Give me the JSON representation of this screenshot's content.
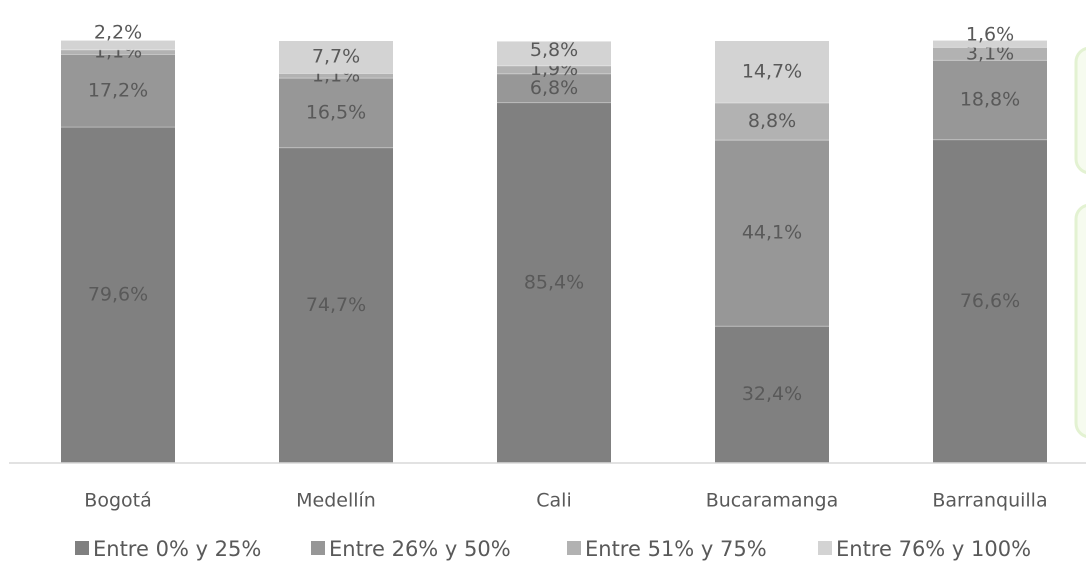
{
  "chart_data": {
    "type": "stacked-bar",
    "categories": [
      "Bogotá",
      "Medellín",
      "Cali",
      "Bucaramanga",
      "Barranquilla"
    ],
    "series": [
      {
        "name": "Entre 0% y 25%",
        "color": "#808080",
        "values": [
          79.6,
          74.7,
          85.4,
          32.4,
          76.6
        ],
        "value_labels": [
          "79,6%",
          "74,7%",
          "85,4%",
          "32,4%",
          "76,6%"
        ]
      },
      {
        "name": "Entre 26% y 50%",
        "color": "#979797",
        "values": [
          17.2,
          16.5,
          6.8,
          44.1,
          18.8
        ],
        "value_labels": [
          "17,2%",
          "16,5%",
          "6,8%",
          "44,1%",
          "18,8%"
        ]
      },
      {
        "name": "Entre 51% y 75%",
        "color": "#b2b2b2",
        "values": [
          1.1,
          1.1,
          1.9,
          8.8,
          3.1
        ],
        "value_labels": [
          "1,1%",
          "1,1%",
          "1,9%",
          "8,8%",
          "3,1%"
        ]
      },
      {
        "name": "Entre 76% y 100%",
        "color": "#d3d3d3",
        "values": [
          2.2,
          7.7,
          5.8,
          14.7,
          1.6
        ],
        "value_labels": [
          "2,2%",
          "7,7%",
          "5,8%",
          "14,7%",
          "1,6%"
        ]
      }
    ],
    "ylim": [
      0,
      100
    ]
  }
}
